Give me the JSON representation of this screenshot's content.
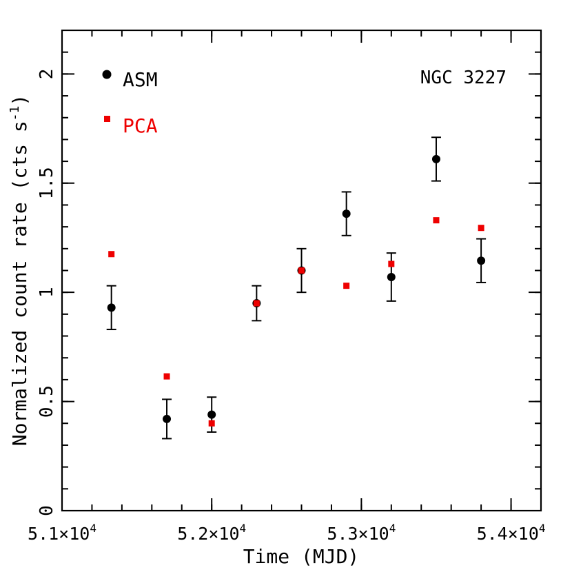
{
  "chart_data": {
    "type": "scatter",
    "title": "NGC 3227",
    "xlabel": "Time (MJD)",
    "ylabel": "Normalized count rate (cts s",
    "ylabel_sup": "-1",
    "ylabel_close": ")",
    "xlim": [
      51000,
      54200
    ],
    "ylim": [
      0,
      2.2
    ],
    "x_ticks": [
      {
        "value": 51000,
        "mant": "5.1×10",
        "exp": "4"
      },
      {
        "value": 52000,
        "mant": "5.2×10",
        "exp": "4"
      },
      {
        "value": 53000,
        "mant": "5.3×10",
        "exp": "4"
      },
      {
        "value": 54000,
        "mant": "5.4×10",
        "exp": "4"
      }
    ],
    "x_minor_step": 200,
    "y_ticks": [
      {
        "value": 0,
        "label": "0"
      },
      {
        "value": 0.5,
        "label": "0.5"
      },
      {
        "value": 1,
        "label": "1"
      },
      {
        "value": 1.5,
        "label": "1.5"
      },
      {
        "value": 2,
        "label": "2"
      }
    ],
    "y_minor_step": 0.1,
    "legend_position": "top-left",
    "series": [
      {
        "name": "ASM",
        "color": "#000000",
        "marker": "circle",
        "points": [
          {
            "x": 51330,
            "y": 0.93,
            "err": 0.1
          },
          {
            "x": 51700,
            "y": 0.42,
            "err": 0.09
          },
          {
            "x": 52000,
            "y": 0.44,
            "err": 0.08
          },
          {
            "x": 52300,
            "y": 0.95,
            "err": 0.08
          },
          {
            "x": 52600,
            "y": 1.1,
            "err": 0.1
          },
          {
            "x": 52900,
            "y": 1.36,
            "err": 0.1
          },
          {
            "x": 53200,
            "y": 1.07,
            "err": 0.11
          },
          {
            "x": 53500,
            "y": 1.61,
            "err": 0.1
          },
          {
            "x": 53800,
            "y": 1.145,
            "err": 0.1
          }
        ]
      },
      {
        "name": "PCA",
        "color": "#ee0000",
        "marker": "square",
        "points": [
          {
            "x": 51330,
            "y": 1.175
          },
          {
            "x": 51700,
            "y": 0.615
          },
          {
            "x": 52000,
            "y": 0.4
          },
          {
            "x": 52300,
            "y": 0.95
          },
          {
            "x": 52600,
            "y": 1.1
          },
          {
            "x": 52900,
            "y": 1.03
          },
          {
            "x": 53200,
            "y": 1.13
          },
          {
            "x": 53500,
            "y": 1.33
          },
          {
            "x": 53800,
            "y": 1.295
          }
        ]
      }
    ]
  }
}
